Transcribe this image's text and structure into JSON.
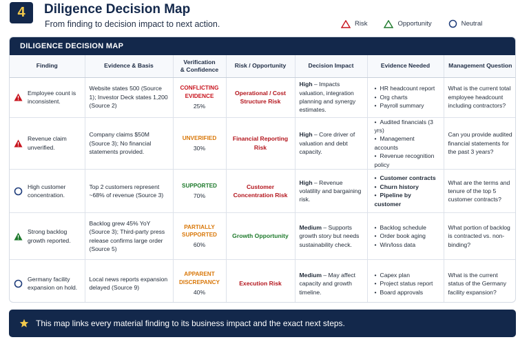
{
  "header": {
    "step_number": "4",
    "title": "Diligence Decision Map",
    "subtitle": "From finding to decision impact to next action."
  },
  "legend": {
    "risk": "Risk",
    "opportunity": "Opportunity",
    "neutral": "Neutral"
  },
  "colors": {
    "navy": "#13284b",
    "risk_red": "#c8141e",
    "opportunity_green": "#1e7a2c",
    "neutral_blue": "#1d3b7a",
    "partial_orange": "#d9780a",
    "star_gold": "#f2c94c"
  },
  "card": {
    "title": "DILIGENCE DECISION MAP"
  },
  "table": {
    "headers": {
      "finding": "Finding",
      "evidence": "Evidence & Basis",
      "verification_line1": "Verification",
      "verification_line2": "& Confidence",
      "risk_opportunity": "Risk / Opportunity",
      "decision_impact": "Decision Impact",
      "evidence_needed": "Evidence Needed",
      "management_question": "Management Question"
    },
    "rows": [
      {
        "type": "risk",
        "icon": "risk-triangle-icon",
        "finding": "Employee count is inconsistent.",
        "evidence": "Website states 500 (Source 1); Investor Deck states 1,200 (Source 2)",
        "verification_status": "CONFLICTING EVIDENCE",
        "confidence": "25%",
        "risk_opportunity": "Operational / Cost Structure Risk",
        "impact_level": "High",
        "impact_text": " – Impacts valuation, integration planning and synergy estimates.",
        "evidence_needed": [
          "HR headcount report",
          "Org charts",
          "Payroll summary"
        ],
        "question": "What is the current total employee headcount including contractors?"
      },
      {
        "type": "risk",
        "icon": "risk-triangle-icon",
        "finding": "Revenue claim unverified.",
        "evidence": "Company claims $50M (Source 3); No financial statements provided.",
        "verification_status": "UNVERIFIED",
        "confidence": "30%",
        "risk_opportunity": "Financial Reporting Risk",
        "impact_level": "High",
        "impact_text": " – Core driver of valuation and debt capacity.",
        "evidence_needed": [
          "Audited financials (3 yrs)",
          "Management accounts",
          "Revenue recognition policy"
        ],
        "question": "Can you provide audited financial statements for the past 3 years?"
      },
      {
        "type": "neutral",
        "icon": "neutral-circle-icon",
        "finding": "High customer concentration.",
        "evidence": "Top 2 customers represent ~68% of revenue (Source 3)",
        "verification_status": "SUPPORTED",
        "confidence": "70%",
        "risk_opportunity": "Customer Concentration Risk",
        "impact_level": "High",
        "impact_text": " – Revenue volatility and bargaining risk.",
        "evidence_needed": [
          "Customer contracts",
          "Churn history",
          "Pipeline by customer"
        ],
        "question": "What are the terms and tenure of the top 5 customer contracts?"
      },
      {
        "type": "opportunity",
        "icon": "opportunity-triangle-icon",
        "finding": "Strong backlog growth reported.",
        "evidence": "Backlog grew 45% YoY (Source 3); Third-party press release confirms large order (Source 5)",
        "verification_status": "PARTIALLY SUPPORTED",
        "confidence": "60%",
        "risk_opportunity": "Growth Opportunity",
        "impact_level": "Medium",
        "impact_text": " – Supports growth story but needs sustainability check.",
        "evidence_needed": [
          "Backlog schedule",
          "Order book aging",
          "Win/loss data"
        ],
        "question": "What portion of backlog is contracted vs. non-binding?"
      },
      {
        "type": "neutral",
        "icon": "neutral-circle-icon",
        "finding": "Germany facility expansion on hold.",
        "evidence": "Local news reports expansion delayed (Source 9)",
        "verification_status": "APPARENT DISCREPANCY",
        "confidence": "40%",
        "risk_opportunity": "Execution Risk",
        "impact_level": "Medium",
        "impact_text": " – May affect capacity and growth timeline.",
        "evidence_needed": [
          "Capex plan",
          "Project status report",
          "Board approvals"
        ],
        "question": "What is the current status of the Germany facility expansion?"
      }
    ]
  },
  "footer": {
    "text": "This map links every material finding to its business impact and the exact next steps."
  }
}
